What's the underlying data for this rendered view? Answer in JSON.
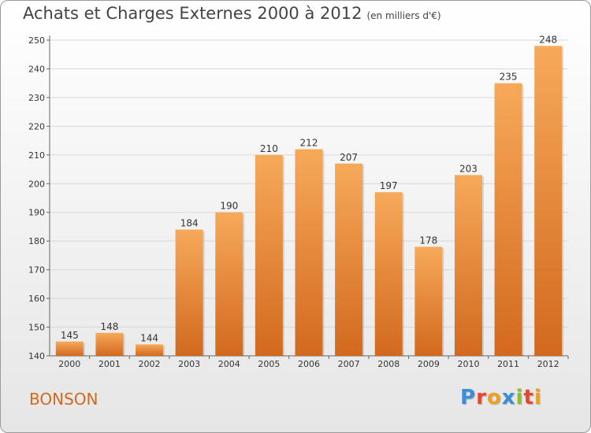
{
  "title": "Achats et Charges Externes 2000 à 2012",
  "subtitle": "(en milliers d'€)",
  "commune": "BONSON",
  "logo": {
    "text": "Proxiti",
    "letters": [
      {
        "ch": "P",
        "color": "#3b8fd9"
      },
      {
        "ch": "r",
        "color": "#e8462f"
      },
      {
        "ch": "o",
        "color": "#f0a020"
      },
      {
        "ch": "x",
        "color": "#3b8fd9"
      },
      {
        "ch": "i",
        "color": "#8bbf2b"
      },
      {
        "ch": "t",
        "color": "#e8462f"
      },
      {
        "ch": "i",
        "color": "#f0a020"
      }
    ]
  },
  "colors": {
    "bar_top": "#f7a95a",
    "bar_bottom": "#d2691e",
    "grid": "#d8d8d8",
    "commune": "#d2691e"
  },
  "chart_data": {
    "type": "bar",
    "categories": [
      "2000",
      "2001",
      "2002",
      "2003",
      "2004",
      "2005",
      "2006",
      "2007",
      "2008",
      "2009",
      "2010",
      "2011",
      "2012"
    ],
    "values": [
      145,
      148,
      144,
      184,
      190,
      210,
      212,
      207,
      197,
      178,
      203,
      235,
      248
    ],
    "ylim": [
      140,
      250
    ],
    "yticks": [
      140,
      150,
      160,
      170,
      180,
      190,
      200,
      210,
      220,
      230,
      240,
      250
    ],
    "grid": true,
    "data_labels": true
  }
}
